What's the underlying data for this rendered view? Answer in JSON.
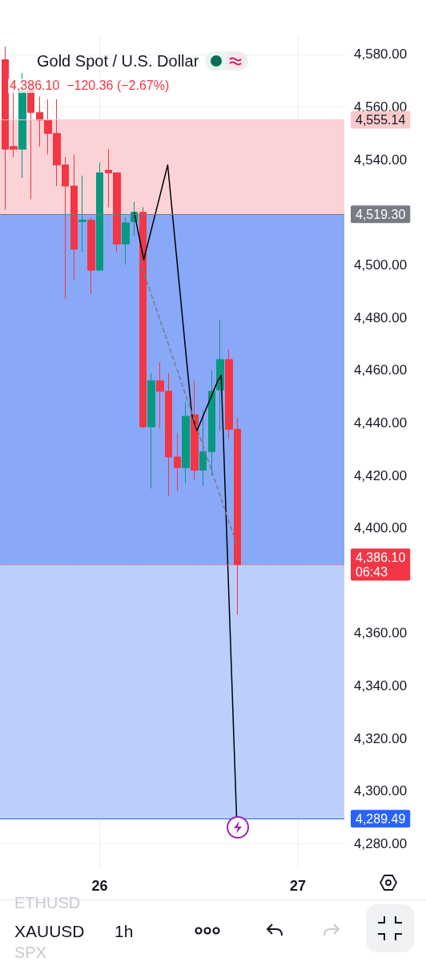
{
  "chart_data": {
    "type": "candlestick",
    "title": "Gold Spot / U.S. Dollar",
    "subtitle": "4,386.10  −120.36 (−2.67%)",
    "x": [
      25.522,
      25.565,
      25.609,
      25.652,
      25.696,
      25.739,
      25.783,
      25.826,
      25.87,
      25.913,
      25.957,
      26,
      26.043,
      26.087,
      26.13,
      26.174,
      26.217,
      26.261,
      26.304,
      26.348,
      26.391,
      26.435,
      26.478,
      26.522,
      26.565,
      26.609,
      26.652,
      26.696
    ],
    "ohlc": [
      [
        4578,
        4583,
        4521,
        4544
      ],
      [
        4545,
        4570,
        4541,
        4544
      ],
      [
        4544,
        4573,
        4533,
        4566
      ],
      [
        4567,
        4569,
        4525,
        4558
      ],
      [
        4558,
        4564,
        4545,
        4555
      ],
      [
        4555,
        4563,
        4542,
        4550
      ],
      [
        4550,
        4563,
        4530,
        4538
      ],
      [
        4538,
        4541,
        4487,
        4530
      ],
      [
        4530,
        4542,
        4494,
        4506
      ],
      [
        4516.5,
        4534,
        4505,
        4517
      ],
      [
        4517,
        4518,
        4489,
        4498
      ],
      [
        4498,
        4539,
        4498,
        4535
      ],
      [
        4536,
        4544,
        4522,
        4535
      ],
      [
        4535,
        4535,
        4505,
        4508
      ],
      [
        4508,
        4518,
        4500,
        4516
      ],
      [
        4516.5,
        4524,
        4511,
        4520
      ],
      [
        4520,
        4522,
        4438,
        4438.5
      ],
      [
        4438.5,
        4459,
        4415,
        4456
      ],
      [
        4456,
        4463,
        4438,
        4452
      ],
      [
        4452,
        4459,
        4412,
        4427
      ],
      [
        4427,
        4436,
        4414,
        4423
      ],
      [
        4423,
        4448,
        4417,
        4442.5
      ],
      [
        4443,
        4456,
        4418,
        4422
      ],
      [
        4422,
        4445,
        4416,
        4429
      ],
      [
        4429,
        4460,
        4420,
        4452
      ],
      [
        4452.5,
        4479,
        4437,
        4464
      ],
      [
        4464,
        4468,
        4434,
        4437.5
      ],
      [
        4437.5,
        4442,
        4367,
        4386.1
      ]
    ],
    "series": [
      {
        "type": "line",
        "color": "#000000",
        "x": [
          26.174,
          26.222,
          26.343,
          26.465,
          26.491,
          26.596,
          26.613,
          26.691
        ],
        "values": [
          4520,
          4502,
          4538,
          4443,
          4437,
          4456,
          4458,
          4290
        ]
      },
      {
        "type": "line",
        "color": "#787b86",
        "line_style": "dashed",
        "x": [
          26.2,
          26.691
        ],
        "values": [
          4502,
          4394
        ]
      }
    ],
    "marker": "none",
    "xlim": [
      25.496,
      27.235
    ],
    "xticks": [
      26,
      27
    ],
    "ylim": [
      4271,
      4587
    ],
    "yticks": [
      {
        "value": 4280,
        "label": "4,280.00"
      },
      {
        "value": 4300,
        "label": "4,300.00"
      },
      {
        "value": 4320,
        "label": "4,320.00"
      },
      {
        "value": 4340,
        "label": "4,340.00"
      },
      {
        "value": 4360,
        "label": "4,360.00"
      },
      {
        "value": 4400,
        "label": "4,400.00"
      },
      {
        "value": 4420,
        "label": "4,420.00"
      },
      {
        "value": 4440,
        "label": "4,440.00"
      },
      {
        "value": 4460,
        "label": "4,460.00"
      },
      {
        "value": 4480,
        "label": "4,480.00"
      },
      {
        "value": 4500,
        "label": "4,500.00"
      },
      {
        "value": 4520,
        "label": null
      },
      {
        "value": 4540,
        "label": "4,540.00"
      },
      {
        "value": 4560,
        "label": "4,560.00"
      },
      {
        "value": 4580,
        "label": "4,580.00"
      }
    ],
    "grid": true,
    "bands": [
      {
        "axis": "y",
        "from": 4519.3,
        "to": 4555.14,
        "color": "#fbd3d6"
      },
      {
        "axis": "y",
        "from": 4386.1,
        "to": 4519.3,
        "color": "#8aa8f8"
      },
      {
        "axis": "y",
        "from": 4289.49,
        "to": 4386.1,
        "color": "#bccffb"
      }
    ],
    "ref_lines": [
      {
        "axis": "y",
        "value": 4555.14,
        "label": "4,555.14",
        "color": "#f9c9cc",
        "line_style": "solid"
      },
      {
        "axis": "y",
        "value": 4519.3,
        "label": "4,519.30",
        "color": "#787b86",
        "line_style": "solid"
      },
      {
        "axis": "y",
        "value": 4386.1,
        "label": "4,386.10\n06:43",
        "color": "#f23645",
        "line_style": "dotted"
      },
      {
        "axis": "y",
        "value": 4289.49,
        "label": "4,289.49",
        "color": "#2962ff",
        "line_style": "solid"
      }
    ],
    "annotations": [
      "ETHUSD",
      "XAUUSD",
      "1h",
      "SPX"
    ]
  }
}
